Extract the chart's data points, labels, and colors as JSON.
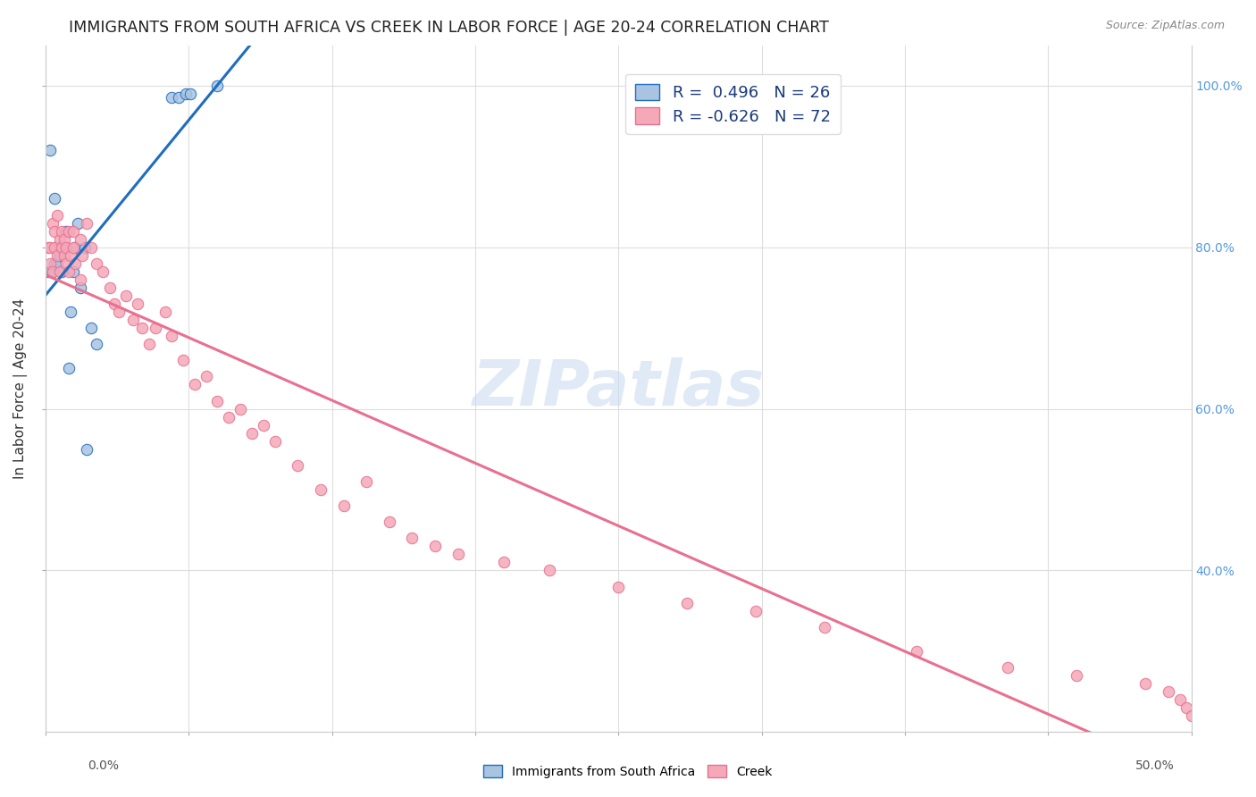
{
  "title": "IMMIGRANTS FROM SOUTH AFRICA VS CREEK IN LABOR FORCE | AGE 20-24 CORRELATION CHART",
  "source": "Source: ZipAtlas.com",
  "ylabel": "In Labor Force | Age 20-24",
  "right_yticks": [
    40.0,
    60.0,
    80.0,
    100.0
  ],
  "blue_R": 0.496,
  "blue_N": 26,
  "pink_R": -0.626,
  "pink_N": 72,
  "blue_color": "#a8c4e0",
  "blue_line_color": "#1f6dbf",
  "pink_color": "#f5a8b8",
  "pink_line_color": "#e87090",
  "watermark": "ZIPatlas",
  "blue_scatter_x": [
    0.001,
    0.002,
    0.003,
    0.004,
    0.004,
    0.005,
    0.005,
    0.006,
    0.007,
    0.008,
    0.009,
    0.01,
    0.011,
    0.012,
    0.013,
    0.014,
    0.015,
    0.017,
    0.018,
    0.02,
    0.022,
    0.055,
    0.058,
    0.061,
    0.063,
    0.075
  ],
  "blue_scatter_y": [
    0.77,
    0.92,
    0.77,
    0.78,
    0.86,
    0.8,
    0.78,
    0.79,
    0.77,
    0.8,
    0.82,
    0.65,
    0.72,
    0.77,
    0.8,
    0.83,
    0.75,
    0.8,
    0.55,
    0.7,
    0.68,
    0.985,
    0.985,
    0.99,
    0.99,
    1.0
  ],
  "pink_scatter_x": [
    0.001,
    0.002,
    0.002,
    0.003,
    0.003,
    0.004,
    0.004,
    0.005,
    0.005,
    0.006,
    0.006,
    0.007,
    0.007,
    0.008,
    0.008,
    0.009,
    0.009,
    0.01,
    0.01,
    0.011,
    0.012,
    0.012,
    0.013,
    0.015,
    0.015,
    0.016,
    0.018,
    0.02,
    0.022,
    0.025,
    0.028,
    0.03,
    0.032,
    0.035,
    0.038,
    0.04,
    0.042,
    0.045,
    0.048,
    0.052,
    0.055,
    0.06,
    0.065,
    0.07,
    0.075,
    0.08,
    0.085,
    0.09,
    0.095,
    0.1,
    0.11,
    0.12,
    0.13,
    0.14,
    0.15,
    0.16,
    0.17,
    0.18,
    0.2,
    0.22,
    0.25,
    0.28,
    0.31,
    0.34,
    0.38,
    0.42,
    0.45,
    0.48,
    0.49,
    0.495,
    0.498,
    0.5
  ],
  "pink_scatter_y": [
    0.8,
    0.78,
    0.8,
    0.77,
    0.83,
    0.82,
    0.8,
    0.79,
    0.84,
    0.77,
    0.81,
    0.8,
    0.82,
    0.79,
    0.81,
    0.8,
    0.78,
    0.77,
    0.82,
    0.79,
    0.8,
    0.82,
    0.78,
    0.76,
    0.81,
    0.79,
    0.83,
    0.8,
    0.78,
    0.77,
    0.75,
    0.73,
    0.72,
    0.74,
    0.71,
    0.73,
    0.7,
    0.68,
    0.7,
    0.72,
    0.69,
    0.66,
    0.63,
    0.64,
    0.61,
    0.59,
    0.6,
    0.57,
    0.58,
    0.56,
    0.53,
    0.5,
    0.48,
    0.51,
    0.46,
    0.44,
    0.43,
    0.42,
    0.41,
    0.4,
    0.38,
    0.36,
    0.35,
    0.33,
    0.3,
    0.28,
    0.27,
    0.26,
    0.25,
    0.24,
    0.23,
    0.22
  ]
}
